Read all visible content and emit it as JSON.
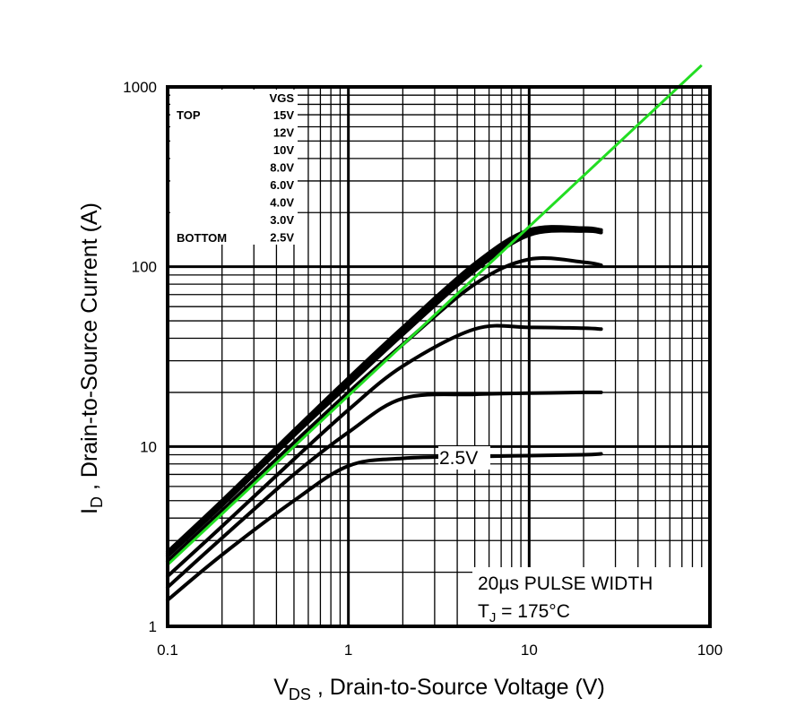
{
  "chart_data": {
    "type": "line",
    "xlabel": {
      "main": "V",
      "sub": "DS",
      "rest": " , Drain-to-Source Voltage (V)"
    },
    "ylabel": {
      "main": "I",
      "sub": "D",
      "rest": " , Drain-to-Source Current (A)"
    },
    "xscale": "log",
    "yscale": "log",
    "xlim": [
      0.1,
      100
    ],
    "ylim": [
      1,
      1000
    ],
    "x_ticks": [
      "0.1",
      "1",
      "10",
      "100"
    ],
    "y_ticks": [
      "1",
      "10",
      "100",
      "1000"
    ],
    "grid": true,
    "legend": {
      "placement": "top-left",
      "header": "VGS",
      "top_label": "TOP",
      "bottom_label": "BOTTOM",
      "entries": [
        "15V",
        "12V",
        "10V",
        "8.0V",
        "6.0V",
        "4.0V",
        "3.0V",
        "2.5V"
      ]
    },
    "x": [
      0.1,
      0.2,
      0.5,
      1,
      2,
      5,
      10,
      20,
      25
    ],
    "series": [
      {
        "name": "15V",
        "values": [
          2.6,
          5.0,
          12.3,
          24,
          46,
          104,
          160,
          164,
          160
        ]
      },
      {
        "name": "12V",
        "values": [
          2.55,
          4.9,
          12.0,
          23.5,
          45,
          102,
          158,
          163,
          160
        ]
      },
      {
        "name": "10V",
        "values": [
          2.5,
          4.8,
          11.8,
          23,
          44,
          100,
          155,
          162,
          158
        ]
      },
      {
        "name": "8.0V",
        "values": [
          2.45,
          4.7,
          11.5,
          22,
          42,
          95,
          150,
          158,
          155
        ]
      },
      {
        "name": "6.0V",
        "values": [
          2.3,
          4.4,
          10.5,
          20,
          37,
          80,
          110,
          106,
          102
        ]
      },
      {
        "name": "4.0V",
        "values": [
          1.9,
          3.6,
          8.5,
          16,
          28,
          45,
          46,
          45.5,
          45
        ]
      },
      {
        "name": "3.0V",
        "values": [
          1.65,
          3.1,
          7.0,
          12,
          18.5,
          19.5,
          19.8,
          20,
          20
        ]
      },
      {
        "name": "2.5V",
        "values": [
          1.4,
          2.5,
          5.0,
          7.8,
          8.6,
          8.8,
          8.9,
          9.0,
          9.1
        ]
      }
    ],
    "overlay_line": {
      "color": "#22dd22",
      "x": [
        0.1,
        90
      ],
      "y": [
        2.2,
        1320
      ]
    },
    "annotations": {
      "curve_label": "2.5V",
      "pulse": "20µs PULSE WIDTH",
      "tj_main": "T",
      "tj_sub": "J",
      "tj_rest": " = 175°C"
    }
  }
}
